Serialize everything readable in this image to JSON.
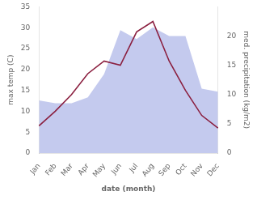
{
  "chart_data": {
    "type": "line",
    "categories": [
      "Jan",
      "Feb",
      "Mar",
      "Apr",
      "May",
      "Jun",
      "Jul",
      "Aug",
      "Sep",
      "Oct",
      "Nov",
      "Dec"
    ],
    "series": [
      {
        "type": "area",
        "color": "#b0b8e8",
        "axis": "y2",
        "values": [
          9.0,
          8.5,
          8.5,
          9.5,
          13.5,
          21.0,
          19.5,
          21.5,
          20.0,
          20.0,
          11.0,
          10.5
        ]
      },
      {
        "type": "line",
        "color": "#8b2040",
        "values": [
          6.5,
          10.0,
          14.0,
          19.0,
          22.0,
          21.0,
          29.0,
          31.5,
          22.0,
          15.0,
          9.0,
          6.0
        ]
      }
    ],
    "xlabel": "date (month)",
    "ylabel": "max temp (C)",
    "y2label": "med. precipitation (kg/m2)",
    "ylim": [
      0,
      35
    ],
    "yticks": [
      0,
      5,
      10,
      15,
      20,
      25,
      30,
      35
    ],
    "y2lim": [
      0,
      25
    ],
    "y2ticks": [
      0,
      5,
      10,
      15,
      20
    ],
    "grid": false
  }
}
